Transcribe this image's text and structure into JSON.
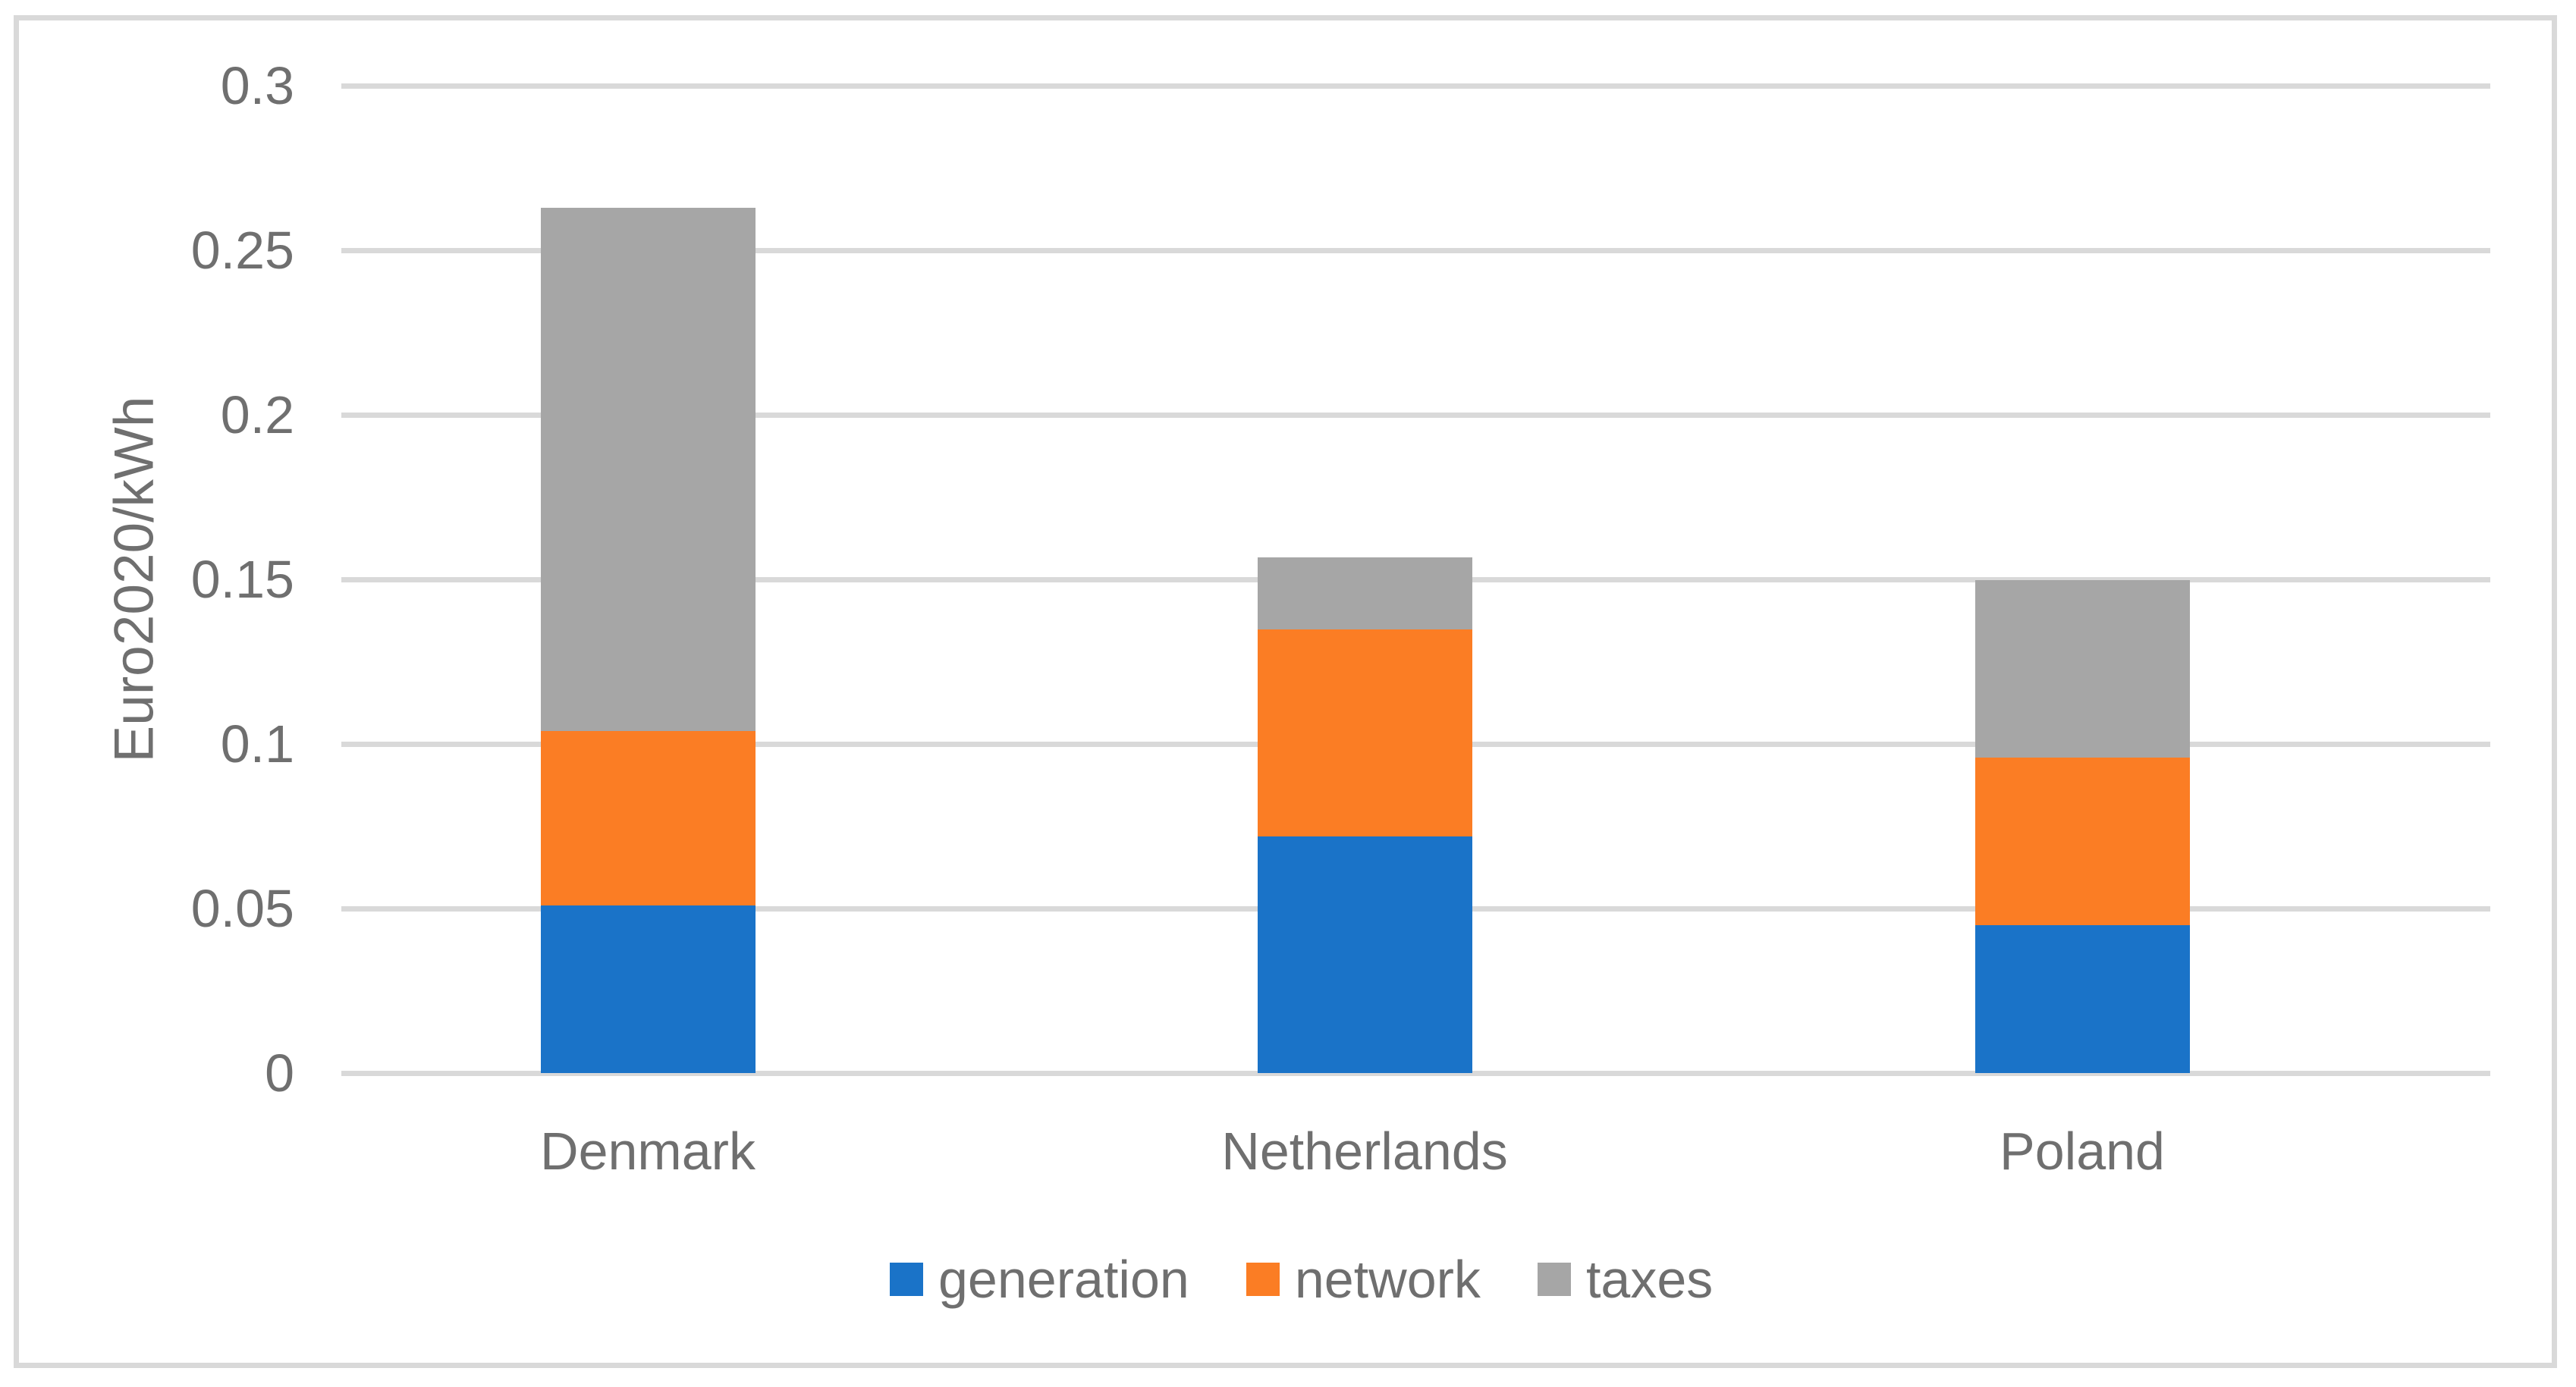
{
  "chart_data": {
    "type": "bar",
    "stacked": true,
    "title": "",
    "categories": [
      "Denmark",
      "Netherlands",
      "Poland"
    ],
    "series": [
      {
        "name": "generation",
        "color": "#1A73C8",
        "values": [
          0.051,
          0.072,
          0.045
        ]
      },
      {
        "name": "network",
        "color": "#FB7D24",
        "values": [
          0.053,
          0.063,
          0.051
        ]
      },
      {
        "name": "taxes",
        "color": "#A6A6A6",
        "values": [
          0.159,
          0.022,
          0.054
        ]
      }
    ],
    "stack_totals": [
      0.263,
      0.157,
      0.15
    ],
    "xlabel": "",
    "ylabel": "Euro2020/kWh",
    "ylim": [
      0,
      0.3
    ],
    "ytick_step": 0.05,
    "ytick_labels": [
      "0",
      "0.05",
      "0.1",
      "0.15",
      "0.2",
      "0.25",
      "0.3"
    ],
    "grid": true,
    "legend_position": "bottom",
    "colors": {
      "gridline": "#D9D9D9",
      "figure_border": "#D9D9D9",
      "text": "#6F6F6F",
      "background": "#FFFFFF"
    }
  }
}
